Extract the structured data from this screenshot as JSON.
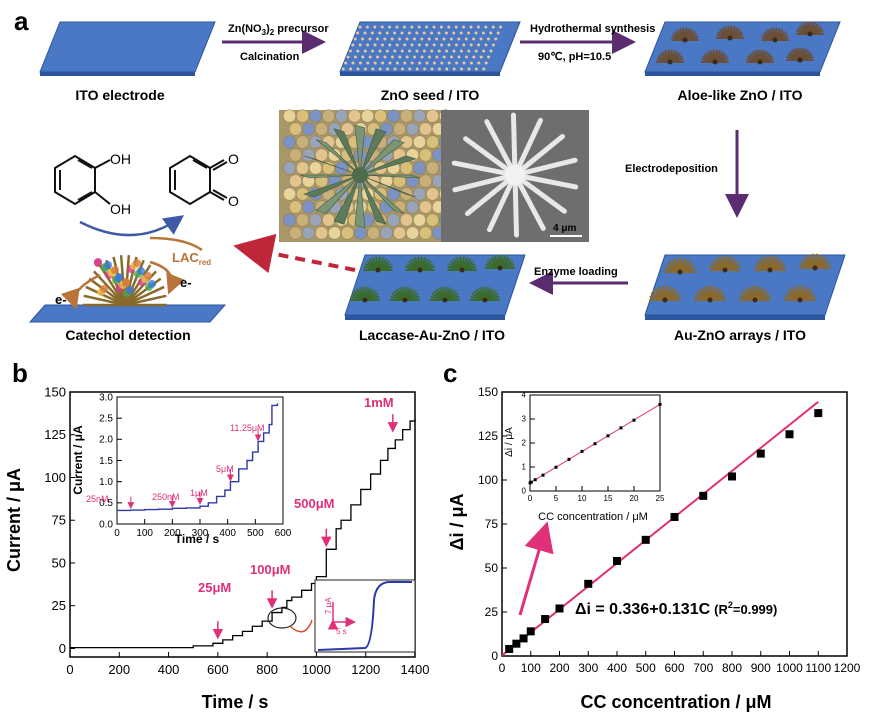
{
  "panel_a": {
    "letter": "a",
    "steps": {
      "ito": "ITO electrode",
      "seed": "ZnO seed / ITO",
      "aloe": "Aloe-like ZnO / ITO",
      "auzno": "Au-ZnO arrays / ITO",
      "laccase": "Laccase-Au-ZnO / ITO",
      "catechol": "Catechol detection"
    },
    "arrows": {
      "a1_top": "Zn(NO",
      "a1_top_sub": "3",
      "a1_top_mid": ")",
      "a1_top_sub2": "2",
      "a1_top_end": " precursor",
      "a1_bottom": "Calcination",
      "a2_top": "Hydrothermal synthesis",
      "a2_bottom": "90℃, pH=10.5",
      "a3": "Electrodeposition",
      "a4": "Enzyme loading"
    },
    "photo_scale": "4 μm",
    "chem": {
      "oh1": "OH",
      "oh2": "OH",
      "o1": "O",
      "o2": "O",
      "lac": "LAC",
      "lac_sub": "red",
      "e1": "e-",
      "e2": "e-"
    },
    "colors": {
      "substrate": "#4a78c4",
      "substrate_edge": "#2c55a0",
      "arrow": "#5b2c6f",
      "dashed": "#c0263a"
    }
  },
  "panel_b": {
    "letter": "b",
    "ylabel": "Current / μA",
    "xlabel": "Time / s",
    "annotations": [
      "25μM",
      "100μM",
      "500μM",
      "1mM"
    ],
    "inset": {
      "ylabel": "Current / μA",
      "xlabel": "Time / s",
      "annotations": [
        "25nM",
        "250nM",
        "1μM",
        "5μM",
        "11.25μM"
      ]
    },
    "inset2": {
      "scale_y": "7 μA",
      "scale_x": "5 s"
    }
  },
  "panel_c": {
    "letter": "c",
    "ylabel": "Δi / μA",
    "xlabel": "CC concentration / μM",
    "equation": "Δi = 0.336+0.131C",
    "r2_open": "(R",
    "r2_sup": "2",
    "r2_close": "=0.999)",
    "inset": {
      "ylabel": "Δi / μA",
      "xlabel": "CC concentration / μM"
    }
  },
  "chart_data": [
    {
      "type": "line",
      "panel": "b",
      "xlabel": "Time / s",
      "ylabel": "Current / μA",
      "xlim": [
        0,
        1400
      ],
      "ylim": [
        -5,
        150
      ],
      "xticks": [
        0,
        200,
        400,
        600,
        800,
        1000,
        1200,
        1400
      ],
      "yticks": [
        0,
        25,
        50,
        75,
        100,
        125,
        150
      ],
      "series": [
        {
          "x": [
            0,
            500,
            580,
            620,
            660,
            700,
            740,
            780,
            820,
            860,
            880,
            900,
            940,
            980,
            1000,
            1040,
            1080,
            1100,
            1140,
            1180,
            1220,
            1260,
            1290,
            1320,
            1350,
            1380,
            1400
          ],
          "values": [
            0.5,
            1.5,
            3,
            5,
            7.5,
            10,
            13,
            16,
            21,
            24,
            28,
            30,
            34,
            38,
            42,
            58,
            70,
            75,
            84,
            93,
            102,
            110,
            117,
            122,
            128,
            133,
            134
          ]
        }
      ]
    },
    {
      "type": "line",
      "panel": "b-inset",
      "xlabel": "Time / s",
      "ylabel": "Current / μA",
      "xlim": [
        0,
        600
      ],
      "ylim": [
        0,
        3.0
      ],
      "xticks": [
        0,
        100,
        200,
        300,
        400,
        500,
        600
      ],
      "yticks": [
        0.0,
        0.5,
        1.0,
        1.5,
        2.0,
        2.5,
        3.0
      ],
      "series": [
        {
          "x": [
            0,
            50,
            100,
            150,
            200,
            250,
            300,
            330,
            360,
            390,
            410,
            440,
            470,
            490,
            510,
            530,
            550,
            560,
            580
          ],
          "values": [
            0.32,
            0.33,
            0.34,
            0.35,
            0.37,
            0.38,
            0.42,
            0.5,
            0.65,
            0.8,
            1.0,
            1.3,
            1.5,
            1.7,
            1.95,
            2.15,
            2.35,
            2.8,
            2.85
          ]
        }
      ]
    },
    {
      "type": "scatter",
      "panel": "c",
      "xlabel": "CC concentration / μM",
      "ylabel": "Δi / μA",
      "xlim": [
        0,
        1200
      ],
      "ylim": [
        0,
        150
      ],
      "xticks": [
        0,
        100,
        200,
        300,
        400,
        500,
        600,
        700,
        800,
        900,
        1000,
        1100,
        1200
      ],
      "yticks": [
        0,
        25,
        50,
        75,
        100,
        125,
        150
      ],
      "series": [
        {
          "x": [
            25,
            50,
            75,
            100,
            150,
            200,
            300,
            400,
            500,
            600,
            700,
            800,
            900,
            1000,
            1100
          ],
          "values": [
            4,
            7,
            10,
            14,
            21,
            27,
            41,
            54,
            66,
            79,
            91,
            102,
            115,
            126,
            138
          ]
        }
      ],
      "fit": {
        "intercept": 0.336,
        "slope": 0.131
      }
    },
    {
      "type": "scatter",
      "panel": "c-inset",
      "xlabel": "CC concentration / μM",
      "ylabel": "Δi / μA",
      "xlim": [
        0,
        25
      ],
      "ylim": [
        0,
        4
      ],
      "xticks": [
        0,
        5,
        10,
        15,
        20,
        25
      ],
      "yticks": [
        0,
        1,
        2,
        3,
        4
      ],
      "series": [
        {
          "x": [
            0.025,
            0.25,
            1,
            2.5,
            5,
            7.5,
            10,
            12.5,
            15,
            17.5,
            20,
            25
          ],
          "values": [
            0.34,
            0.37,
            0.47,
            0.66,
            0.99,
            1.32,
            1.65,
            1.97,
            2.3,
            2.63,
            2.95,
            3.61
          ]
        }
      ]
    }
  ]
}
